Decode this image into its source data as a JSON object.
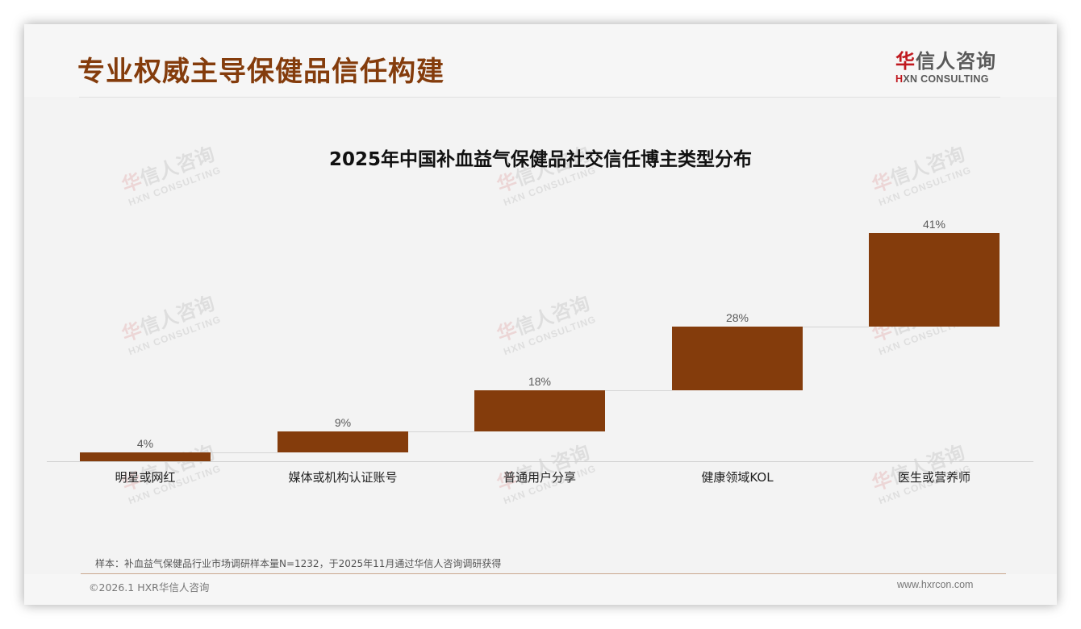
{
  "header": {
    "page_title": "专业权威主导保健品信任构建",
    "logo": {
      "cn_first": "华",
      "cn_rest": "信人咨询",
      "en_first": "H",
      "en_rest": "XN CONSULTING"
    }
  },
  "watermark": {
    "cn_first": "华",
    "cn_rest": "信人咨询",
    "en": "HXN CONSULTING"
  },
  "colors": {
    "bar": "#843c0c",
    "title": "#843c0c",
    "logo_red": "#c0191f",
    "background": "#f3f3f3"
  },
  "chart_data": {
    "type": "bar",
    "subtype": "waterfall",
    "title": "2025年中国补血益气保健品社交信任博主类型分布",
    "categories": [
      "明星或网红",
      "媒体或机构认证账号",
      "普通用户分享",
      "健康领域KOL",
      "医生或营养师"
    ],
    "values": [
      4,
      9,
      18,
      28,
      41
    ],
    "value_labels": [
      "4%",
      "9%",
      "18%",
      "28%",
      "41%"
    ],
    "unit": "%",
    "xlabel": "",
    "ylabel": "",
    "ylim": [
      0,
      100
    ],
    "grid": false,
    "legend": false,
    "connector_lines": true
  },
  "footer": {
    "note": "样本：补血益气保健品行业市场调研样本量N=1232，于2025年11月通过华信人咨询调研获得",
    "copyright": "©2026.1 HXR华信人咨询",
    "website": "www.hxrcon.com"
  }
}
